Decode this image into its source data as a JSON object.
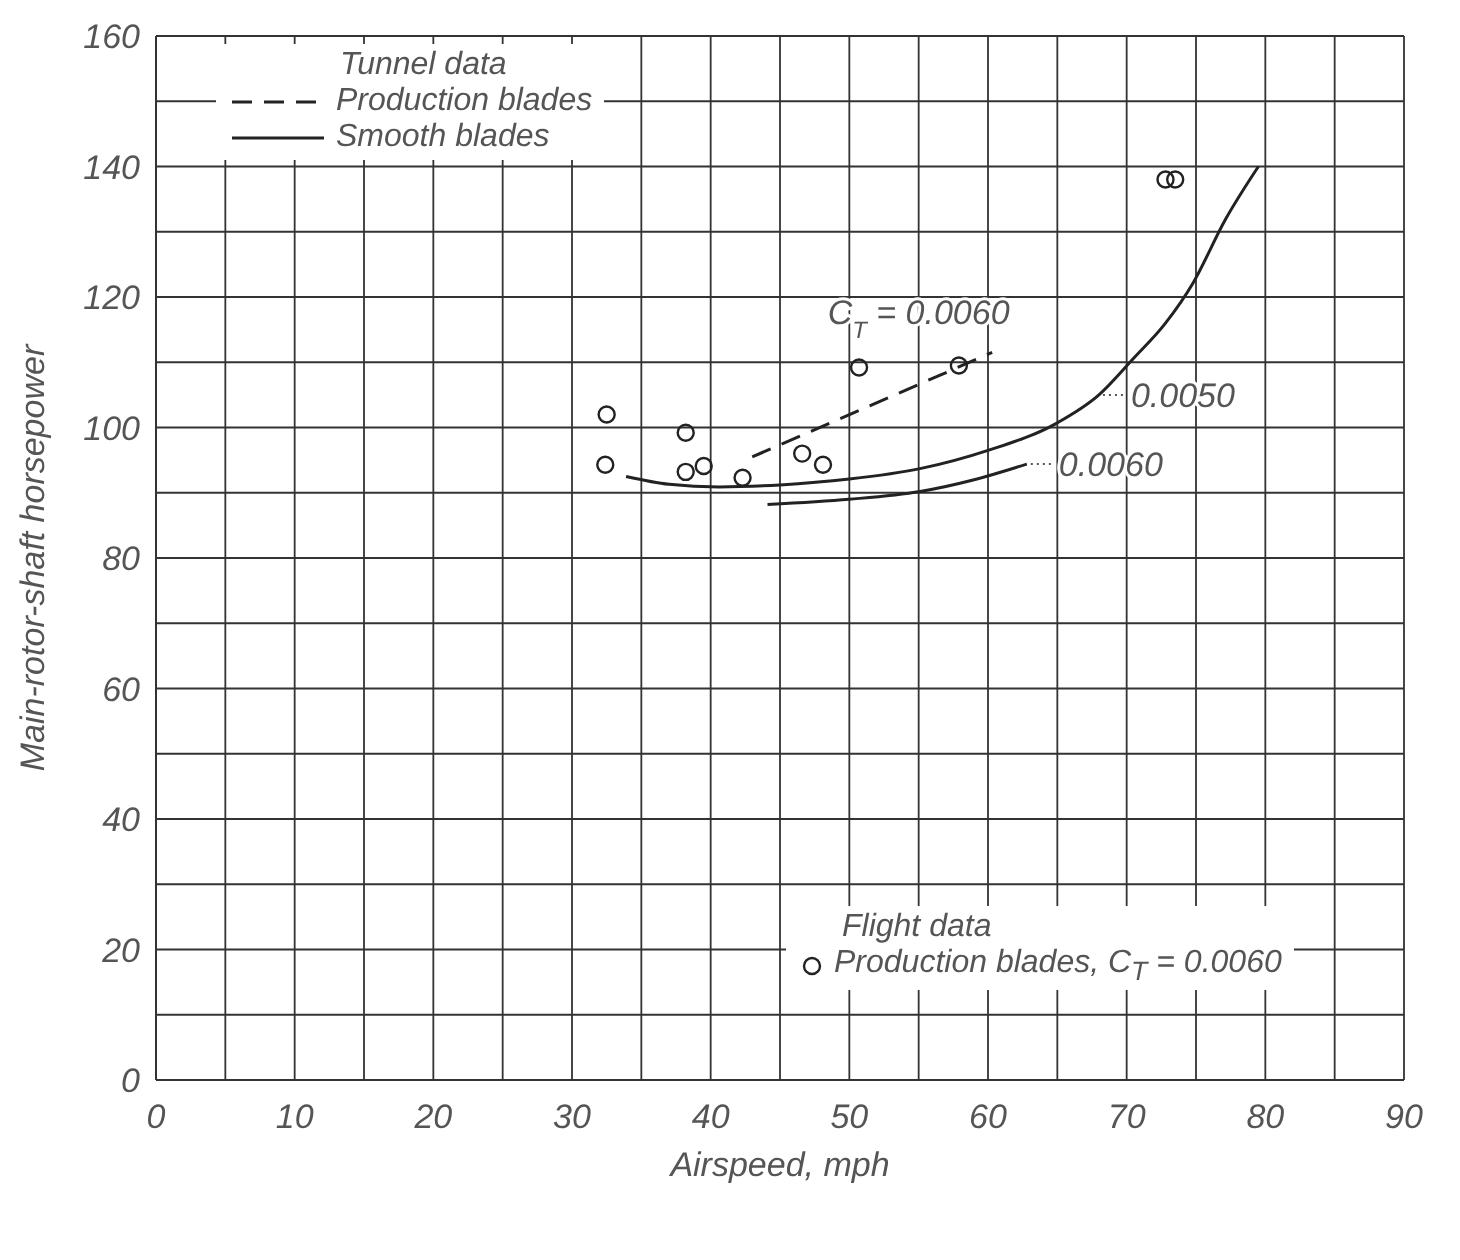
{
  "chart_data": {
    "type": "line",
    "xlabel": "Airspeed, mph",
    "ylabel": "Main-rotor-shaft horsepower",
    "legend_title": "Tunnel data",
    "legend": "top left",
    "grid": true,
    "xlim": [
      0,
      90
    ],
    "ylim": [
      0,
      160
    ],
    "xticks": [
      0,
      {
        "value": 5,
        "label": null
      },
      10,
      {
        "value": 15,
        "label": null
      },
      20,
      {
        "value": 25,
        "label": null
      },
      30,
      {
        "value": 35,
        "label": null
      },
      40,
      {
        "value": 45,
        "label": null
      },
      50,
      {
        "value": 55,
        "label": null
      },
      60,
      {
        "value": 65,
        "label": null
      },
      70,
      {
        "value": 75,
        "label": null
      },
      80,
      {
        "value": 85,
        "label": null
      },
      90
    ],
    "yticks": [
      0,
      {
        "value": 10,
        "label": null
      },
      20,
      {
        "value": 30,
        "label": null
      },
      40,
      {
        "value": 50,
        "label": null
      },
      60,
      {
        "value": 70,
        "label": null
      },
      80,
      {
        "value": 90,
        "label": null
      },
      100,
      {
        "value": 110,
        "label": null
      },
      120,
      {
        "value": 130,
        "label": null
      },
      140,
      {
        "value": 150,
        "label": null
      },
      160
    ],
    "series": [
      {
        "name": "Production blades",
        "line_style": "dashed",
        "color": "#222222",
        "x": [
          43,
          60.3
        ],
        "values": [
          95.5,
          111.5
        ]
      },
      {
        "name": "Smooth blades",
        "line_style": "solid",
        "color": "#222222",
        "x": [
          33.9,
          37,
          40.6,
          45,
          50,
          55.1,
          60,
          64.9,
          68,
          70.5,
          72.8,
          74.8,
          77.1,
          79.5
        ],
        "values": [
          92.5,
          91.3,
          90.9,
          91.2,
          92.1,
          93.7,
          96.5,
          100.6,
          105,
          110.6,
          116,
          122.2,
          131.8,
          140
        ]
      },
      {
        "line_style": "solid",
        "color": "#222222",
        "x": [
          44.1,
          50,
          55.1,
          59,
          62.8
        ],
        "values": [
          88.2,
          89,
          90.2,
          92,
          94.4
        ]
      },
      {
        "name": "Production blades, C$_{T}$ = 0.0060",
        "type": "scatter",
        "marker": "circle",
        "color": "#222222",
        "x": [
          32.5,
          32.4,
          38.2,
          38.2,
          39.5,
          42.3,
          46.6,
          48.1,
          50.7,
          57.9,
          72.8,
          73.5
        ],
        "values": [
          102,
          94.3,
          99.2,
          93.2,
          94.1,
          92.3,
          96,
          94.3,
          109.2,
          109.5,
          138,
          138
        ]
      }
    ],
    "annotations": [
      "Flight data",
      {
        "text": "C$_{T}$ = 0.0060",
        "x": 55,
        "y": 106.6
      },
      {
        "text": "0.0050",
        "x": 68,
        "y": 105
      },
      {
        "text": "0.0060",
        "x": 62.8,
        "y": 94.4
      }
    ]
  }
}
